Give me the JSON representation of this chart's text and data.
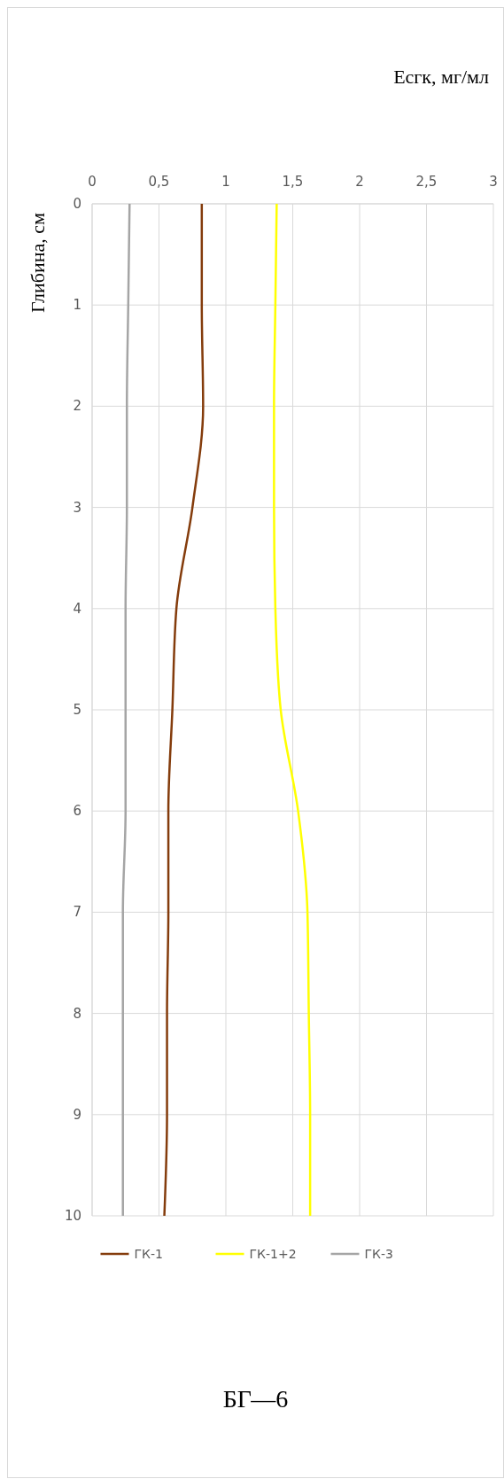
{
  "chart_data": {
    "type": "line",
    "title": "БГ—6",
    "xlabel": "Есгк, мг/мл",
    "ylabel": "Глибина, см",
    "xlim": [
      0,
      3
    ],
    "xticks": [
      0,
      {
        "value": 0.5,
        "label": "0,5"
      },
      1,
      {
        "value": 1.5,
        "label": "1,5"
      },
      2,
      {
        "value": 2.5,
        "label": "2,5"
      },
      3
    ],
    "ylim": [
      10,
      0
    ],
    "yticks": [
      0,
      1,
      2,
      3,
      4,
      5,
      6,
      7,
      8,
      9,
      10
    ],
    "grid": true,
    "legend": "bottom",
    "marker": "none",
    "line_style": "solid",
    "series": [
      {
        "name": "ГК-1",
        "color": "#843c0c",
        "x": [
          0.82,
          0.82,
          0.83,
          0.75,
          0.63,
          0.6,
          0.57,
          0.57,
          0.56,
          0.56,
          0.54
        ],
        "values": [
          0,
          1,
          2,
          3,
          4,
          5,
          6,
          7,
          8,
          9,
          10
        ]
      },
      {
        "name": "ГК-1+2",
        "color": "#ffff00",
        "x": [
          1.38,
          1.37,
          1.36,
          1.36,
          1.37,
          1.41,
          1.54,
          1.61,
          1.62,
          1.63,
          1.63
        ],
        "values": [
          0,
          1,
          2,
          3,
          4,
          5,
          6,
          7,
          8,
          9,
          10
        ]
      },
      {
        "name": "ГК-3",
        "color": "#a5a5a5",
        "x": [
          0.28,
          0.27,
          0.26,
          0.26,
          0.25,
          0.25,
          0.25,
          0.23,
          0.23,
          0.23,
          0.23
        ],
        "values": [
          0,
          1,
          2,
          3,
          4,
          5,
          6,
          7,
          8,
          9,
          10
        ]
      }
    ]
  }
}
